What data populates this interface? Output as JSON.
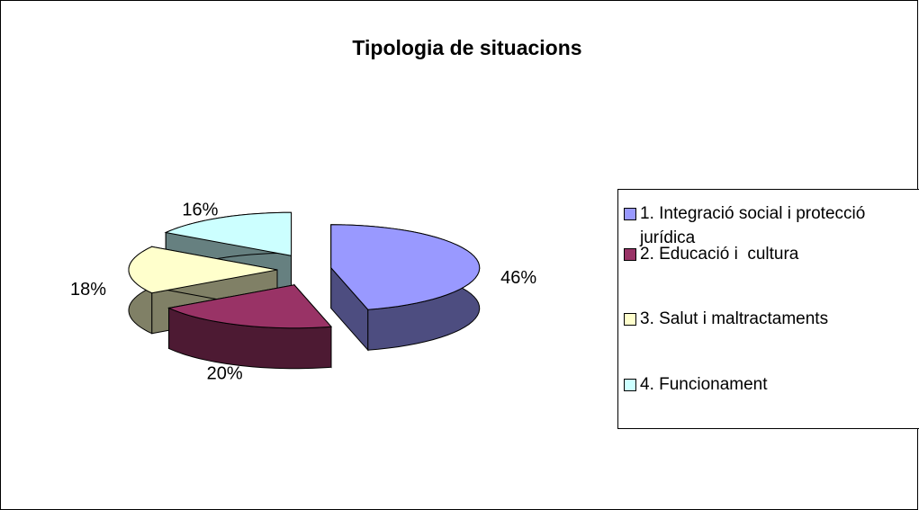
{
  "chart_data": {
    "type": "pie3d",
    "title": "Tipologia de situacions",
    "categories": [
      "1. Integració social i protecció jurídica",
      "2. Educació i  cultura",
      "3. Salut i maltractaments",
      "4. Funcionament"
    ],
    "values": [
      46,
      20,
      18,
      16
    ],
    "value_labels": [
      "46%",
      "20%",
      "18%",
      "16%"
    ],
    "colors": [
      "#9999ff",
      "#993366",
      "#ffffcc",
      "#ccffff"
    ],
    "legend": "right"
  }
}
